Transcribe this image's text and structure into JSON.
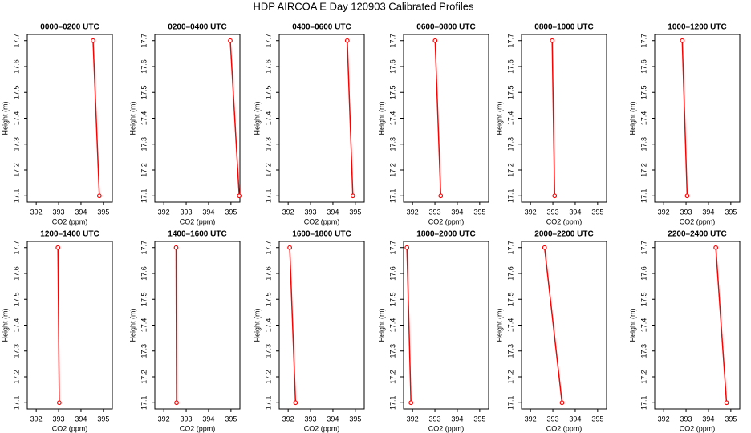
{
  "title": "HDP AIRCOA E  Day 120903  Calibrated Profiles",
  "chart_data": [
    {
      "type": "line",
      "title": "0000–0200 UTC",
      "xlabel": "CO2 (ppm)",
      "ylabel": "Height (m)",
      "x": [
        394.54,
        394.82
      ],
      "values": [
        17.7,
        17.1
      ],
      "color": "#ff0000",
      "xlim": [
        391.6,
        395.4
      ],
      "xticks": [
        392,
        393,
        394,
        395
      ],
      "ylim": [
        17.076,
        17.724
      ],
      "yticks": [
        17.1,
        17.2,
        17.3,
        17.4,
        17.5,
        17.6,
        17.7
      ]
    },
    {
      "type": "line",
      "title": "0200–0400 UTC",
      "xlabel": "CO2 (ppm)",
      "ylabel": "Height (m)",
      "x": [
        394.97,
        395.37
      ],
      "values": [
        17.7,
        17.1
      ],
      "color": "#ff0000",
      "xlim": [
        391.6,
        395.4
      ],
      "xticks": [
        392,
        393,
        394,
        395
      ],
      "ylim": [
        17.076,
        17.724
      ],
      "yticks": [
        17.1,
        17.2,
        17.3,
        17.4,
        17.5,
        17.6,
        17.7
      ]
    },
    {
      "type": "line",
      "title": "0400–0600 UTC",
      "xlabel": "CO2 (ppm)",
      "ylabel": "Height (m)",
      "x": [
        394.64,
        394.89
      ],
      "values": [
        17.7,
        17.1
      ],
      "color": "#ff0000",
      "xlim": [
        391.6,
        395.4
      ],
      "xticks": [
        392,
        393,
        394,
        395
      ],
      "ylim": [
        17.076,
        17.724
      ],
      "yticks": [
        17.1,
        17.2,
        17.3,
        17.4,
        17.5,
        17.6,
        17.7
      ]
    },
    {
      "type": "line",
      "title": "0600–0800 UTC",
      "xlabel": "CO2 (ppm)",
      "ylabel": "Height (m)",
      "x": [
        393.01,
        393.26
      ],
      "values": [
        17.7,
        17.1
      ],
      "color": "#ff0000",
      "xlim": [
        391.6,
        395.4
      ],
      "xticks": [
        392,
        393,
        394,
        395
      ],
      "ylim": [
        17.076,
        17.724
      ],
      "yticks": [
        17.1,
        17.2,
        17.3,
        17.4,
        17.5,
        17.6,
        17.7
      ]
    },
    {
      "type": "line",
      "title": "0800–1000 UTC",
      "xlabel": "CO2 (ppm)",
      "ylabel": "Height (m)",
      "x": [
        392.97,
        393.08
      ],
      "values": [
        17.7,
        17.1
      ],
      "color": "#ff0000",
      "xlim": [
        391.6,
        395.4
      ],
      "xticks": [
        392,
        393,
        394,
        395
      ],
      "ylim": [
        17.076,
        17.724
      ],
      "yticks": [
        17.1,
        17.2,
        17.3,
        17.4,
        17.5,
        17.6,
        17.7
      ]
    },
    {
      "type": "line",
      "title": "1000–1200 UTC",
      "xlabel": "CO2 (ppm)",
      "ylabel": "Height (m)",
      "x": [
        392.83,
        393.05
      ],
      "values": [
        17.7,
        17.1
      ],
      "color": "#ff0000",
      "xlim": [
        391.6,
        395.4
      ],
      "xticks": [
        392,
        393,
        394,
        395
      ],
      "ylim": [
        17.076,
        17.724
      ],
      "yticks": [
        17.1,
        17.2,
        17.3,
        17.4,
        17.5,
        17.6,
        17.7
      ]
    },
    {
      "type": "line",
      "title": "1200–1400 UTC",
      "xlabel": "CO2 (ppm)",
      "ylabel": "Height (m)",
      "x": [
        392.97,
        393.03
      ],
      "values": [
        17.7,
        17.1
      ],
      "color": "#ff0000",
      "xlim": [
        391.6,
        395.4
      ],
      "xticks": [
        392,
        393,
        394,
        395
      ],
      "ylim": [
        17.076,
        17.724
      ],
      "yticks": [
        17.1,
        17.2,
        17.3,
        17.4,
        17.5,
        17.6,
        17.7
      ]
    },
    {
      "type": "line",
      "title": "1400–1600 UTC",
      "xlabel": "CO2 (ppm)",
      "ylabel": "Height (m)",
      "x": [
        392.55,
        392.57
      ],
      "values": [
        17.7,
        17.1
      ],
      "color": "#ff0000",
      "xlim": [
        391.6,
        395.4
      ],
      "xticks": [
        392,
        393,
        394,
        395
      ],
      "ylim": [
        17.076,
        17.724
      ],
      "yticks": [
        17.1,
        17.2,
        17.3,
        17.4,
        17.5,
        17.6,
        17.7
      ]
    },
    {
      "type": "line",
      "title": "1600–1800 UTC",
      "xlabel": "CO2 (ppm)",
      "ylabel": "Height (m)",
      "x": [
        392.07,
        392.33
      ],
      "values": [
        17.7,
        17.1
      ],
      "color": "#ff0000",
      "xlim": [
        391.6,
        395.4
      ],
      "xticks": [
        392,
        393,
        394,
        395
      ],
      "ylim": [
        17.076,
        17.724
      ],
      "yticks": [
        17.1,
        17.2,
        17.3,
        17.4,
        17.5,
        17.6,
        17.7
      ]
    },
    {
      "type": "line",
      "title": "1800–2000 UTC",
      "xlabel": "CO2 (ppm)",
      "ylabel": "Height (m)",
      "x": [
        391.75,
        391.93
      ],
      "values": [
        17.7,
        17.1
      ],
      "color": "#ff0000",
      "xlim": [
        391.6,
        395.4
      ],
      "xticks": [
        392,
        393,
        394,
        395
      ],
      "ylim": [
        17.076,
        17.724
      ],
      "yticks": [
        17.1,
        17.2,
        17.3,
        17.4,
        17.5,
        17.6,
        17.7
      ]
    },
    {
      "type": "line",
      "title": "2000–2200 UTC",
      "xlabel": "CO2 (ppm)",
      "ylabel": "Height (m)",
      "x": [
        392.63,
        393.41
      ],
      "values": [
        17.7,
        17.1
      ],
      "color": "#ff0000",
      "xlim": [
        391.6,
        395.4
      ],
      "xticks": [
        392,
        393,
        394,
        395
      ],
      "ylim": [
        17.076,
        17.724
      ],
      "yticks": [
        17.1,
        17.2,
        17.3,
        17.4,
        17.5,
        17.6,
        17.7
      ]
    },
    {
      "type": "line",
      "title": "2200–2400 UTC",
      "xlabel": "CO2 (ppm)",
      "ylabel": "Height (m)",
      "x": [
        394.33,
        394.81
      ],
      "values": [
        17.7,
        17.1
      ],
      "color": "#ff0000",
      "xlim": [
        391.6,
        395.4
      ],
      "xticks": [
        392,
        393,
        394,
        395
      ],
      "ylim": [
        17.076,
        17.724
      ],
      "yticks": [
        17.1,
        17.2,
        17.3,
        17.4,
        17.5,
        17.6,
        17.7
      ]
    }
  ]
}
